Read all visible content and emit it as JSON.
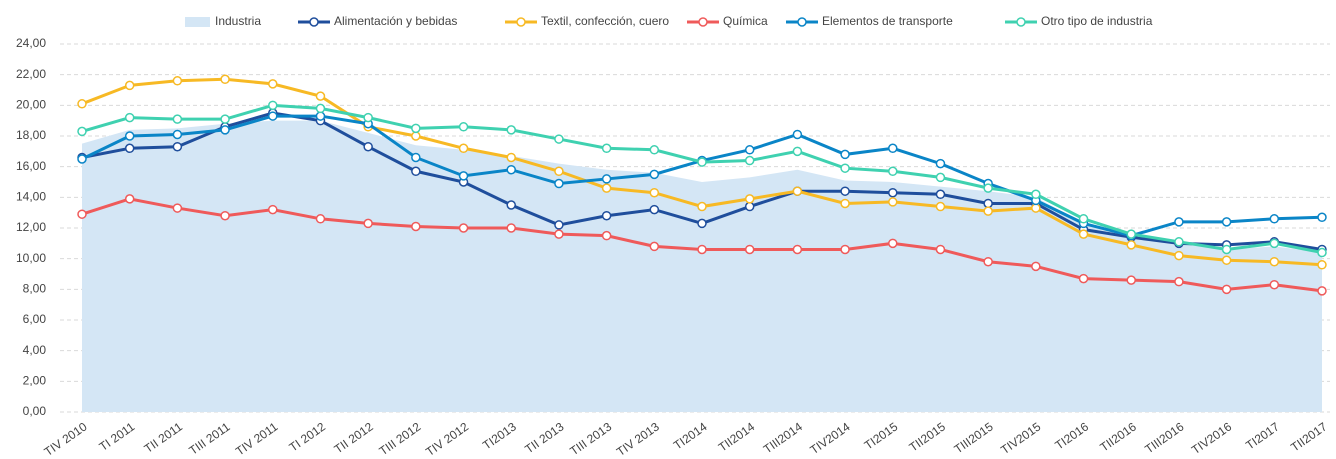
{
  "chart_data": {
    "type": "line",
    "categories": [
      "TIV 2010",
      "TI 2011",
      "TII 2011",
      "TIII 2011",
      "TIV 2011",
      "TI 2012",
      "TII 2012",
      "TIII 2012",
      "TIV 2012",
      "TI2013",
      "TII 2013",
      "TIII 2013",
      "TIV 2013",
      "TI2014",
      "TII2014",
      "TIII2014",
      "TIV2014",
      "TI2015",
      "TII2015",
      "TIII2015",
      "TIV2015",
      "TI2016",
      "TII2016",
      "TIII2016",
      "TIV2016",
      "TI2017",
      "TII2017"
    ],
    "ylim": [
      0,
      24
    ],
    "yticks": [
      {
        "value": 0,
        "label": "0,00"
      },
      {
        "value": 2,
        "label": "2,00"
      },
      {
        "value": 4,
        "label": "4,00"
      },
      {
        "value": 6,
        "label": "6,00"
      },
      {
        "value": 8,
        "label": "8,00"
      },
      {
        "value": 10,
        "label": "10,00"
      },
      {
        "value": 12,
        "label": "12,00"
      },
      {
        "value": 14,
        "label": "14,00"
      },
      {
        "value": 16,
        "label": "16,00"
      },
      {
        "value": 18,
        "label": "18,00"
      },
      {
        "value": 20,
        "label": "20,00"
      },
      {
        "value": 22,
        "label": "22,00"
      },
      {
        "value": 24,
        "label": "24,00"
      }
    ],
    "grid": true,
    "series": [
      {
        "name": "Industria",
        "kind": "area",
        "color": "#d4e6f5",
        "values": [
          17.5,
          18.4,
          18.5,
          18.8,
          19.0,
          19.0,
          18.2,
          17.4,
          17.1,
          16.7,
          16.2,
          15.8,
          15.6,
          15.0,
          15.3,
          15.8,
          15.1,
          15.0,
          14.7,
          14.4,
          14.0,
          12.3,
          11.5,
          11.0,
          10.6,
          10.8,
          10.4
        ]
      },
      {
        "name": "Alimentación y bebidas",
        "kind": "line",
        "color": "#1f4e9c",
        "values": [
          16.6,
          17.2,
          17.3,
          18.6,
          19.5,
          19.0,
          17.3,
          15.7,
          15.0,
          13.5,
          12.2,
          12.8,
          13.2,
          12.3,
          13.4,
          14.4,
          14.4,
          14.3,
          14.2,
          13.6,
          13.6,
          11.9,
          11.4,
          11.0,
          10.9,
          11.1,
          10.6
        ]
      },
      {
        "name": "Textil, confección, cuero",
        "kind": "line",
        "color": "#f7b924",
        "values": [
          20.1,
          21.3,
          21.6,
          21.7,
          21.4,
          20.6,
          18.6,
          18.0,
          17.2,
          16.6,
          15.7,
          14.6,
          14.3,
          13.4,
          13.9,
          14.4,
          13.6,
          13.7,
          13.4,
          13.1,
          13.3,
          11.6,
          10.9,
          10.2,
          9.9,
          9.8,
          9.6
        ]
      },
      {
        "name": "Química",
        "kind": "line",
        "color": "#ef5a5a",
        "values": [
          12.9,
          13.9,
          13.3,
          12.8,
          13.2,
          12.6,
          12.3,
          12.1,
          12.0,
          12.0,
          11.6,
          11.5,
          10.8,
          10.6,
          10.6,
          10.6,
          10.6,
          11.0,
          10.6,
          9.8,
          9.5,
          8.7,
          8.6,
          8.5,
          8.0,
          8.3,
          7.9
        ]
      },
      {
        "name": "Elementos de transporte",
        "kind": "line",
        "color": "#0a85c7",
        "values": [
          16.5,
          18.0,
          18.1,
          18.4,
          19.3,
          19.3,
          18.8,
          16.6,
          15.4,
          15.8,
          14.9,
          15.2,
          15.5,
          16.4,
          17.1,
          18.1,
          16.8,
          17.2,
          16.2,
          14.9,
          13.8,
          12.3,
          11.5,
          12.4,
          12.4,
          12.6,
          12.7
        ]
      },
      {
        "name": "Otro tipo de industria",
        "kind": "line",
        "color": "#3fd1b0",
        "values": [
          18.3,
          19.2,
          19.1,
          19.1,
          20.0,
          19.8,
          19.2,
          18.5,
          18.6,
          18.4,
          17.8,
          17.2,
          17.1,
          16.3,
          16.4,
          17.0,
          15.9,
          15.7,
          15.3,
          14.6,
          14.2,
          12.6,
          11.6,
          11.1,
          10.6,
          11.0,
          10.4
        ]
      }
    ]
  }
}
